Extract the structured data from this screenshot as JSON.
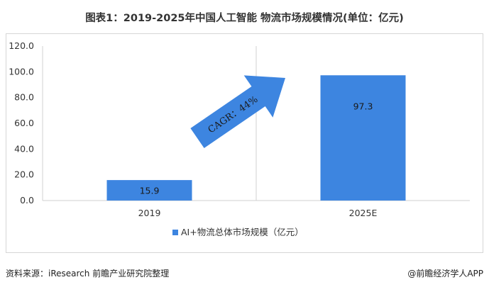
{
  "header": {
    "title": "图表1：2019-2025年中国人工智能 物流市场规模情况(单位：亿元)"
  },
  "chart_data": {
    "type": "bar",
    "categories": [
      "2019",
      "2025E"
    ],
    "series": [
      {
        "name": "AI+物流总体市场规模（亿元）",
        "values": [
          15.9,
          97.3
        ]
      }
    ],
    "data_labels": [
      "15.9",
      "97.3"
    ],
    "yticks": [
      "0.0",
      "20.0",
      "40.0",
      "60.0",
      "80.0",
      "100.0",
      "120.0"
    ],
    "ylim": [
      0,
      120
    ],
    "grid": false,
    "legend_position": "bottom",
    "annotation": "CAGR：44%",
    "bar_color": "#3d85e0",
    "arrow_color": "#3d85e0"
  },
  "footer": {
    "source": "资料来源：iResearch 前瞻产业研究院整理",
    "brand": "@前瞻经济学人APP"
  }
}
